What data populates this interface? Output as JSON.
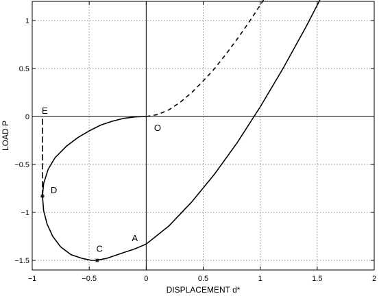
{
  "chart_data": {
    "type": "line",
    "title": "",
    "xlabel": "DISPLACEMENT d*",
    "ylabel": "LOAD  P",
    "xlim": [
      -1,
      2
    ],
    "ylim": [
      -1.6,
      1.2
    ],
    "grid": true,
    "x_ticks": [
      -1,
      -0.5,
      0,
      0.5,
      1,
      1.5,
      2
    ],
    "x_tick_labels": [
      "−1",
      "−0.5",
      "0",
      "0.5",
      "1",
      "1.5",
      "2"
    ],
    "y_ticks": [
      -1.5,
      -1,
      -0.5,
      0,
      0.5,
      1
    ],
    "y_tick_labels": [
      "−1.5",
      "−1",
      "−0.5",
      "0",
      "0.5",
      "1"
    ],
    "series": [
      {
        "style": "solid",
        "x": [
          0.0,
          -0.1,
          -0.2,
          -0.3,
          -0.4,
          -0.5,
          -0.6,
          -0.7,
          -0.8,
          -0.86,
          -0.9,
          -0.91,
          -0.9,
          -0.87,
          -0.82,
          -0.75,
          -0.66,
          -0.56,
          -0.48,
          -0.44,
          -0.35,
          -0.2,
          -0.1,
          0.0,
          0.2,
          0.4,
          0.6,
          0.8,
          1.0,
          1.2,
          1.4,
          1.6,
          1.75
        ],
        "y": [
          0.0,
          -0.005,
          -0.02,
          -0.05,
          -0.09,
          -0.15,
          -0.22,
          -0.31,
          -0.43,
          -0.55,
          -0.7,
          -0.83,
          -0.98,
          -1.12,
          -1.25,
          -1.36,
          -1.44,
          -1.48,
          -1.5,
          -1.5,
          -1.48,
          -1.42,
          -1.38,
          -1.33,
          -1.14,
          -0.89,
          -0.6,
          -0.27,
          0.1,
          0.5,
          0.93,
          1.39,
          1.78
        ]
      },
      {
        "style": "dashed",
        "x": [
          0.0,
          0.1,
          0.2,
          0.3,
          0.4,
          0.5,
          0.6,
          0.7,
          0.8,
          0.9,
          1.0,
          1.1
        ],
        "y": [
          0.0,
          0.02,
          0.07,
          0.15,
          0.25,
          0.37,
          0.5,
          0.65,
          0.81,
          0.98,
          1.16,
          1.35
        ]
      },
      {
        "style": "dashed",
        "x": [
          -0.91,
          -0.91
        ],
        "y": [
          -0.83,
          0.0
        ]
      }
    ],
    "markers": [
      {
        "x": -0.91,
        "y": -0.83,
        "symbol": "*"
      },
      {
        "x": -0.43,
        "y": -1.5,
        "symbol": "*"
      }
    ],
    "annotations": [
      {
        "text": "E",
        "x": -0.89,
        "y": 0.03
      },
      {
        "text": "O",
        "x": 0.1,
        "y": -0.15
      },
      {
        "text": "D",
        "x": -0.81,
        "y": -0.8
      },
      {
        "text": "C",
        "x": -0.41,
        "y": -1.41
      },
      {
        "text": "A",
        "x": -0.1,
        "y": -1.3
      }
    ]
  }
}
